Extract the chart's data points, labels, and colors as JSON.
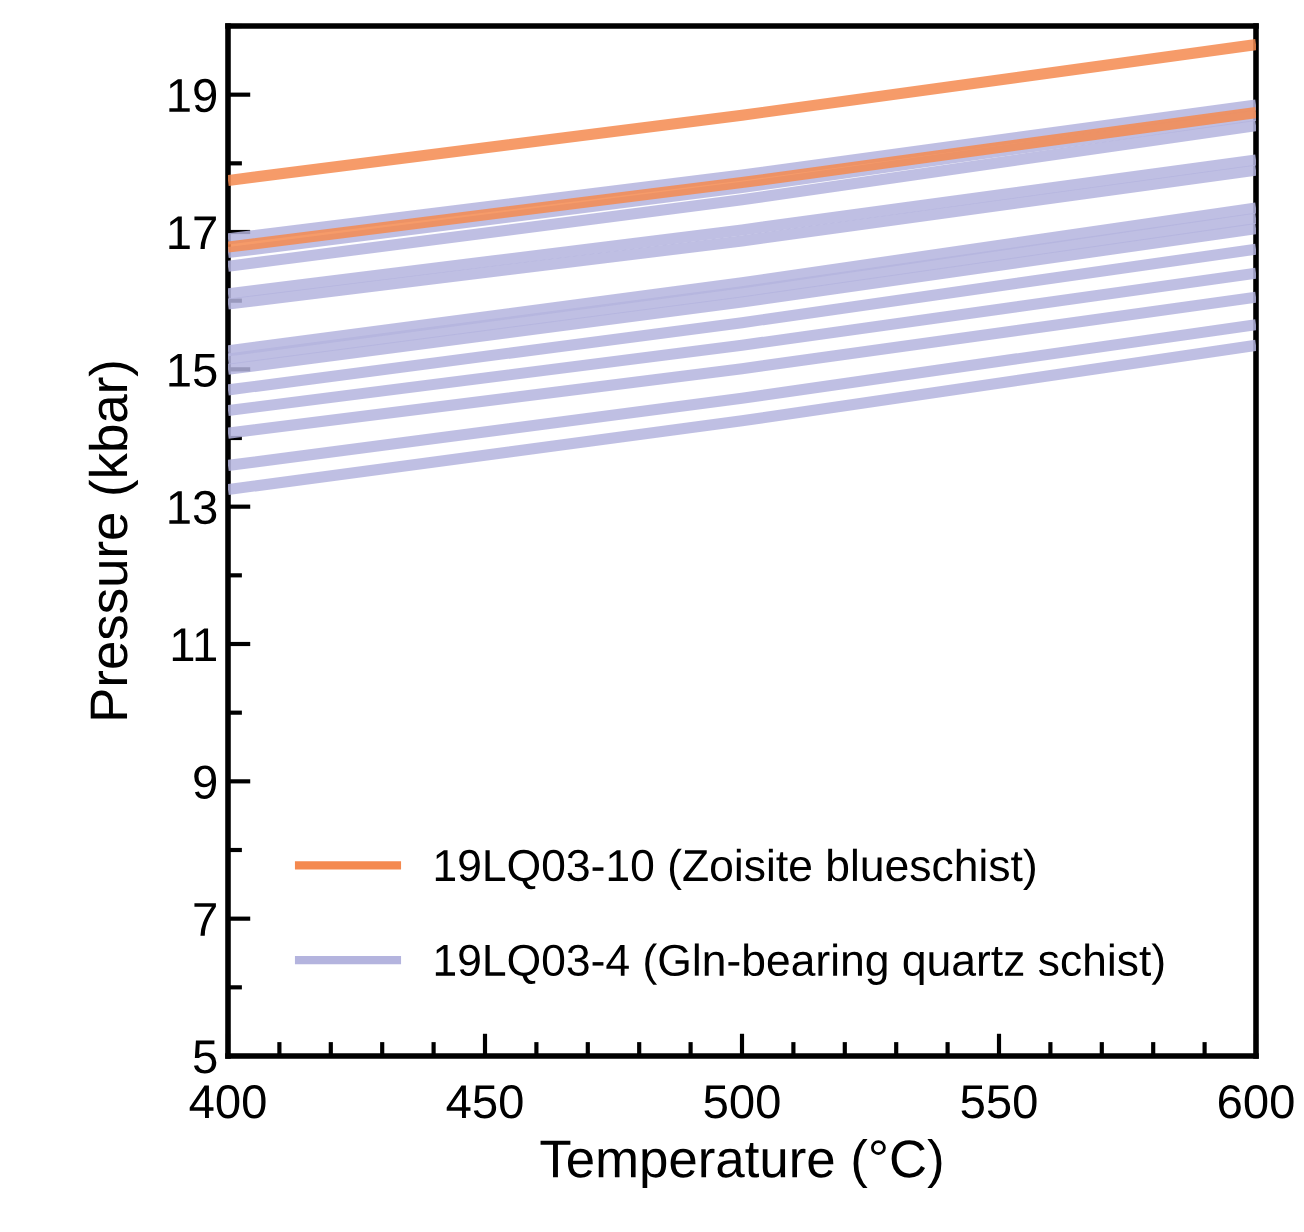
{
  "chart_data": {
    "type": "line",
    "xlabel": "Temperature (°C)",
    "ylabel": "Pressure (kbar)",
    "x": [
      400,
      500,
      600
    ],
    "xlim": [
      400,
      600
    ],
    "xticks": [
      400,
      450,
      500,
      550,
      600
    ],
    "ylim": [
      5,
      20
    ],
    "yticks": [
      5,
      7,
      9,
      11,
      13,
      15,
      17,
      19
    ],
    "grid": false,
    "legend": "bottom left",
    "marker": "none",
    "line_style": "solid",
    "series": [
      {
        "name": "19LQ03-10 (Zoisite blueschist)",
        "color": "#f4894f",
        "values": [
          17.75,
          18.7,
          19.73
        ]
      },
      {
        "color": "#f4894f",
        "values": [
          16.78,
          17.72,
          18.74
        ]
      },
      {
        "name": "19LQ03-4 (Gln-bearing quartz schist)",
        "color": "#b4b4de",
        "values": [
          16.9,
          17.83,
          18.85
        ]
      },
      {
        "color": "#b4b4de",
        "values": [
          16.7,
          17.65,
          18.7
        ]
      },
      {
        "color": "#b4b4de",
        "values": [
          16.5,
          17.47,
          18.55
        ]
      },
      {
        "color": "#b4b4de",
        "values": [
          16.1,
          17.03,
          18.05
        ]
      },
      {
        "color": "#b4b4de",
        "values": [
          15.95,
          16.87,
          17.9
        ]
      },
      {
        "color": "#b4b4de",
        "values": [
          15.27,
          16.26,
          17.35
        ]
      },
      {
        "color": "#b4b4de",
        "values": [
          15.15,
          16.13,
          17.2
        ]
      },
      {
        "color": "#b4b4de",
        "values": [
          15.0,
          15.98,
          17.05
        ]
      },
      {
        "color": "#b4b4de",
        "values": [
          14.7,
          15.68,
          16.75
        ]
      },
      {
        "color": "#b4b4de",
        "values": [
          14.4,
          15.35,
          16.4
        ]
      },
      {
        "color": "#b4b4de",
        "values": [
          14.07,
          15.01,
          16.05
        ]
      },
      {
        "color": "#b4b4de",
        "values": [
          13.6,
          14.58,
          15.65
        ]
      },
      {
        "color": "#b4b4de",
        "values": [
          13.25,
          14.25,
          15.35
        ]
      }
    ]
  }
}
